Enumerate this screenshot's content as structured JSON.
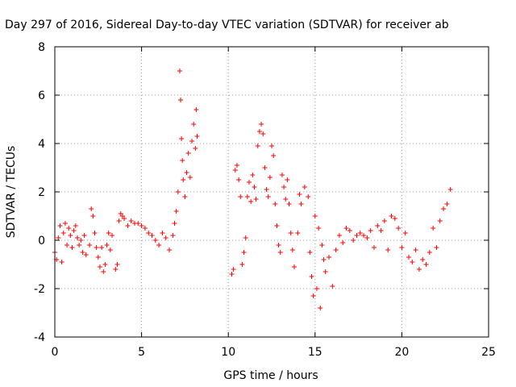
{
  "chart_data": {
    "type": "scatter",
    "title": "Day 297 of 2016, Sidereal Day-to-day VTEC variation (SDTVAR) for receiver ab",
    "xlabel": "GPS time / hours",
    "ylabel": "SDTVAR / TECUs",
    "xlim": [
      0,
      25
    ],
    "ylim": [
      -4,
      8
    ],
    "xticks": [
      "0",
      "5",
      "10",
      "15",
      "20",
      "25"
    ],
    "yticks": [
      "-4",
      "-2",
      "0",
      "2",
      "4",
      "6",
      "8"
    ],
    "grid": true,
    "marker": "plus",
    "color": "#ff0000",
    "series": [
      {
        "points": [
          [
            0.0,
            -0.5
          ],
          [
            0.1,
            -0.8
          ],
          [
            0.2,
            0.1
          ],
          [
            0.3,
            0.6
          ],
          [
            0.4,
            -0.9
          ],
          [
            0.5,
            0.3
          ],
          [
            0.6,
            0.7
          ],
          [
            0.7,
            -0.2
          ],
          [
            0.8,
            0.5
          ],
          [
            0.9,
            0.2
          ],
          [
            1.0,
            -0.3
          ],
          [
            1.1,
            0.4
          ],
          [
            1.2,
            0.6
          ],
          [
            1.3,
            0.1
          ],
          [
            1.4,
            -0.2
          ],
          [
            1.5,
            0.0
          ],
          [
            1.6,
            -0.5
          ],
          [
            1.7,
            0.2
          ],
          [
            1.8,
            -0.6
          ],
          [
            2.0,
            -0.2
          ],
          [
            2.1,
            1.3
          ],
          [
            2.2,
            1.0
          ],
          [
            2.3,
            0.3
          ],
          [
            2.4,
            -0.3
          ],
          [
            2.5,
            -0.7
          ],
          [
            2.6,
            -1.1
          ],
          [
            2.7,
            -0.3
          ],
          [
            2.8,
            -1.3
          ],
          [
            2.9,
            -1.0
          ],
          [
            3.0,
            -0.2
          ],
          [
            3.1,
            0.3
          ],
          [
            3.2,
            -0.4
          ],
          [
            3.3,
            0.2
          ],
          [
            3.5,
            -1.2
          ],
          [
            3.6,
            -1.0
          ],
          [
            3.7,
            0.8
          ],
          [
            3.8,
            1.1
          ],
          [
            3.9,
            1.0
          ],
          [
            4.0,
            0.9
          ],
          [
            4.2,
            0.6
          ],
          [
            4.4,
            0.8
          ],
          [
            4.6,
            0.7
          ],
          [
            4.8,
            0.7
          ],
          [
            5.0,
            0.6
          ],
          [
            5.2,
            0.5
          ],
          [
            5.4,
            0.3
          ],
          [
            5.6,
            0.2
          ],
          [
            5.8,
            0.0
          ],
          [
            6.0,
            -0.2
          ],
          [
            6.2,
            0.3
          ],
          [
            6.4,
            0.1
          ],
          [
            6.6,
            -0.4
          ],
          [
            6.8,
            0.2
          ],
          [
            6.9,
            0.7
          ],
          [
            7.0,
            1.2
          ],
          [
            7.1,
            2.0
          ],
          [
            7.2,
            7.0
          ],
          [
            7.25,
            5.8
          ],
          [
            7.3,
            4.2
          ],
          [
            7.35,
            3.3
          ],
          [
            7.4,
            2.5
          ],
          [
            7.5,
            1.8
          ],
          [
            7.6,
            2.8
          ],
          [
            7.7,
            3.6
          ],
          [
            7.8,
            2.6
          ],
          [
            7.9,
            4.1
          ],
          [
            8.0,
            4.8
          ],
          [
            8.1,
            3.8
          ],
          [
            8.15,
            5.4
          ],
          [
            8.2,
            4.3
          ],
          [
            10.2,
            -1.4
          ],
          [
            10.3,
            -1.2
          ],
          [
            10.4,
            2.9
          ],
          [
            10.5,
            3.1
          ],
          [
            10.6,
            2.5
          ],
          [
            10.7,
            1.8
          ],
          [
            10.8,
            -1.0
          ],
          [
            10.9,
            -0.5
          ],
          [
            11.0,
            0.1
          ],
          [
            11.1,
            1.8
          ],
          [
            11.2,
            2.4
          ],
          [
            11.3,
            1.6
          ],
          [
            11.4,
            2.7
          ],
          [
            11.5,
            2.2
          ],
          [
            11.6,
            1.7
          ],
          [
            11.7,
            3.9
          ],
          [
            11.8,
            4.5
          ],
          [
            11.9,
            4.8
          ],
          [
            12.0,
            4.4
          ],
          [
            12.1,
            3.0
          ],
          [
            12.2,
            2.1
          ],
          [
            12.3,
            1.8
          ],
          [
            12.4,
            2.6
          ],
          [
            12.5,
            3.9
          ],
          [
            12.6,
            3.5
          ],
          [
            12.7,
            1.5
          ],
          [
            12.8,
            0.6
          ],
          [
            12.9,
            -0.2
          ],
          [
            13.0,
            -0.5
          ],
          [
            13.1,
            2.7
          ],
          [
            13.2,
            2.2
          ],
          [
            13.3,
            1.7
          ],
          [
            13.4,
            2.5
          ],
          [
            13.5,
            1.5
          ],
          [
            13.6,
            0.3
          ],
          [
            13.7,
            -0.4
          ],
          [
            13.8,
            -1.1
          ],
          [
            14.0,
            0.3
          ],
          [
            14.1,
            1.9
          ],
          [
            14.2,
            1.5
          ],
          [
            14.4,
            2.2
          ],
          [
            14.6,
            1.8
          ],
          [
            14.7,
            -0.5
          ],
          [
            14.8,
            -1.5
          ],
          [
            14.9,
            -2.3
          ],
          [
            15.0,
            1.0
          ],
          [
            15.1,
            -2.0
          ],
          [
            15.2,
            0.5
          ],
          [
            15.3,
            -2.8
          ],
          [
            15.4,
            -0.2
          ],
          [
            15.5,
            -0.8
          ],
          [
            15.6,
            -1.3
          ],
          [
            15.8,
            -0.7
          ],
          [
            16.0,
            -1.9
          ],
          [
            16.2,
            -0.4
          ],
          [
            16.4,
            0.2
          ],
          [
            16.6,
            -0.1
          ],
          [
            16.8,
            0.5
          ],
          [
            17.0,
            0.4
          ],
          [
            17.2,
            0.0
          ],
          [
            17.4,
            0.2
          ],
          [
            17.6,
            0.3
          ],
          [
            17.8,
            0.2
          ],
          [
            18.0,
            0.1
          ],
          [
            18.2,
            0.4
          ],
          [
            18.4,
            -0.3
          ],
          [
            18.6,
            0.6
          ],
          [
            18.8,
            0.4
          ],
          [
            19.0,
            0.8
          ],
          [
            19.2,
            -0.4
          ],
          [
            19.4,
            1.0
          ],
          [
            19.6,
            0.9
          ],
          [
            19.8,
            0.5
          ],
          [
            20.0,
            -0.3
          ],
          [
            20.2,
            0.3
          ],
          [
            20.4,
            -0.7
          ],
          [
            20.6,
            -0.9
          ],
          [
            20.8,
            -0.4
          ],
          [
            21.0,
            -1.2
          ],
          [
            21.2,
            -0.8
          ],
          [
            21.4,
            -1.0
          ],
          [
            21.6,
            -0.5
          ],
          [
            21.8,
            0.5
          ],
          [
            22.0,
            -0.3
          ],
          [
            22.2,
            0.8
          ],
          [
            22.4,
            1.3
          ],
          [
            22.6,
            1.5
          ],
          [
            22.8,
            2.1
          ]
        ]
      }
    ]
  }
}
